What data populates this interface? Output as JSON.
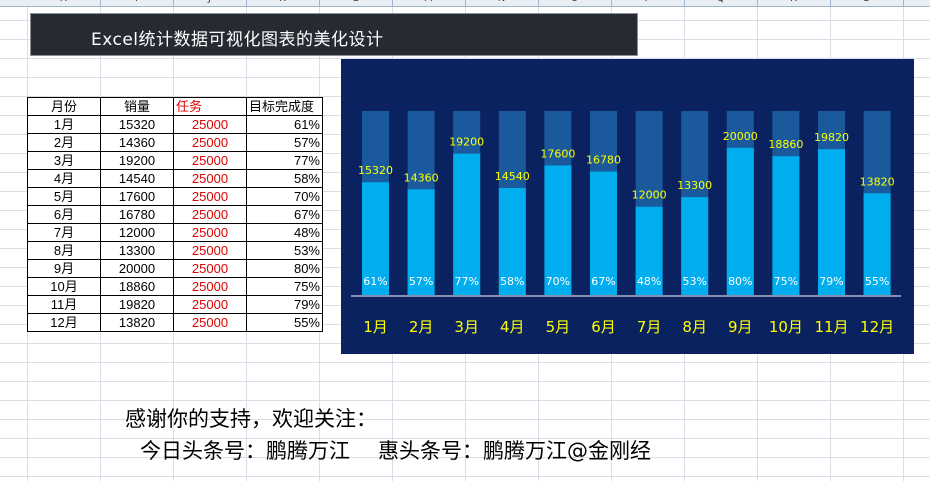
{
  "column_headers": [
    "H",
    "I",
    "J",
    "K",
    "L",
    "M",
    "N",
    "O",
    "P",
    "Q",
    "R",
    "S"
  ],
  "title": "Excel统计数据可视化图表的美化设计",
  "table": {
    "headers": [
      "月份",
      "销量",
      "任务",
      "目标完成度"
    ],
    "rows": [
      [
        "1月",
        "15320",
        "25000",
        "61%"
      ],
      [
        "2月",
        "14360",
        "25000",
        "57%"
      ],
      [
        "3月",
        "19200",
        "25000",
        "77%"
      ],
      [
        "4月",
        "14540",
        "25000",
        "58%"
      ],
      [
        "5月",
        "17600",
        "25000",
        "70%"
      ],
      [
        "6月",
        "16780",
        "25000",
        "67%"
      ],
      [
        "7月",
        "12000",
        "25000",
        "48%"
      ],
      [
        "8月",
        "13300",
        "25000",
        "53%"
      ],
      [
        "9月",
        "20000",
        "25000",
        "80%"
      ],
      [
        "10月",
        "18860",
        "25000",
        "75%"
      ],
      [
        "11月",
        "19820",
        "25000",
        "79%"
      ],
      [
        "12月",
        "13820",
        "25000",
        "55%"
      ]
    ]
  },
  "chart_data": {
    "type": "bar",
    "categories": [
      "1月",
      "2月",
      "3月",
      "4月",
      "5月",
      "6月",
      "7月",
      "8月",
      "9月",
      "10月",
      "11月",
      "12月"
    ],
    "series": [
      {
        "values": [
          25000,
          25000,
          25000,
          25000,
          25000,
          25000,
          25000,
          25000,
          25000,
          25000,
          25000,
          25000
        ]
      },
      {
        "values": [
          15320,
          14360,
          19200,
          14540,
          17600,
          16780,
          12000,
          13300,
          20000,
          18860,
          19820,
          13820
        ]
      }
    ],
    "percent_labels": [
      "61%",
      "57%",
      "77%",
      "58%",
      "70%",
      "67%",
      "48%",
      "53%",
      "80%",
      "75%",
      "79%",
      "55%"
    ],
    "overlap": "full",
    "ylim": [
      0,
      25000
    ],
    "grid": false,
    "legend": "none",
    "colors": {
      "background": "#0b2260",
      "target_bar": "#1a5a9c",
      "sales_bar": "#00adee",
      "value_label": "#ffff00",
      "percent_label": "#ffffff",
      "category_label": "#ffff00",
      "axis": "#ffffff"
    }
  },
  "footer": {
    "thanks": "感谢你的支持，欢迎关注：",
    "toutiao": "今日头条号：鹏腾万江",
    "huitoutiao": "惠头条号：鹏腾万江@金刚经"
  }
}
